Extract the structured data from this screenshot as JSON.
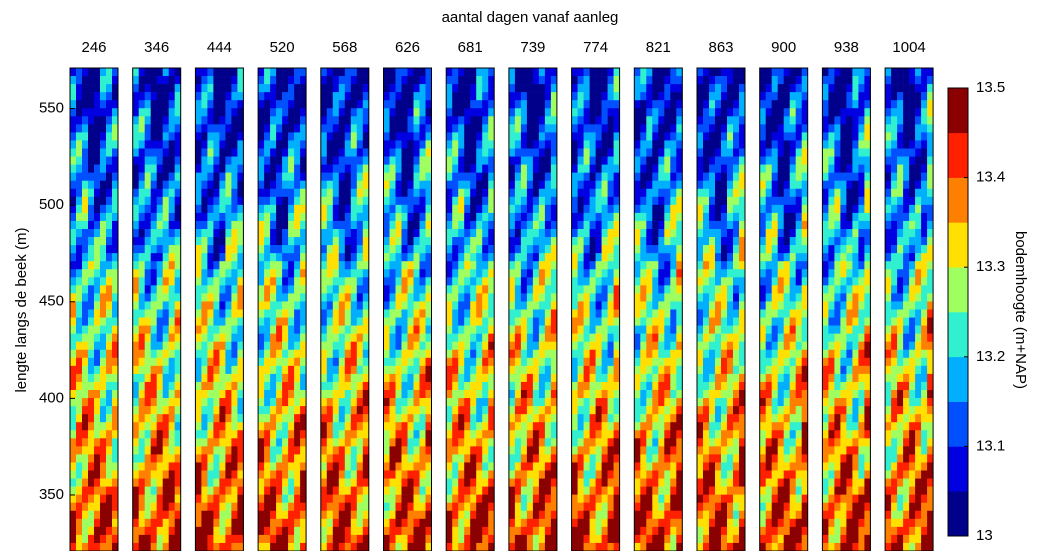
{
  "chart_data": {
    "type": "contour-panels",
    "title": "aantal dagen vanaf aanleg",
    "panels": [
      246,
      346,
      444,
      520,
      568,
      626,
      681,
      739,
      774,
      821,
      863,
      900,
      938,
      1004
    ],
    "y_label": "lengte langs de beek (m)",
    "ylim": [
      321,
      571
    ],
    "yticks": [
      350,
      400,
      450,
      500,
      550
    ],
    "colorbar": {
      "label": "bodemhoogte (m+NAP)",
      "lim": [
        13,
        13.5
      ],
      "ticks": [
        13,
        13.1,
        13.2,
        13.3,
        13.4,
        13.5
      ],
      "colors": [
        "#00008b",
        "#0000e0",
        "#0050ff",
        "#00b0ff",
        "#30f0d0",
        "#a0ff60",
        "#ffe000",
        "#ff8000",
        "#ff2000",
        "#8b0000"
      ]
    }
  }
}
